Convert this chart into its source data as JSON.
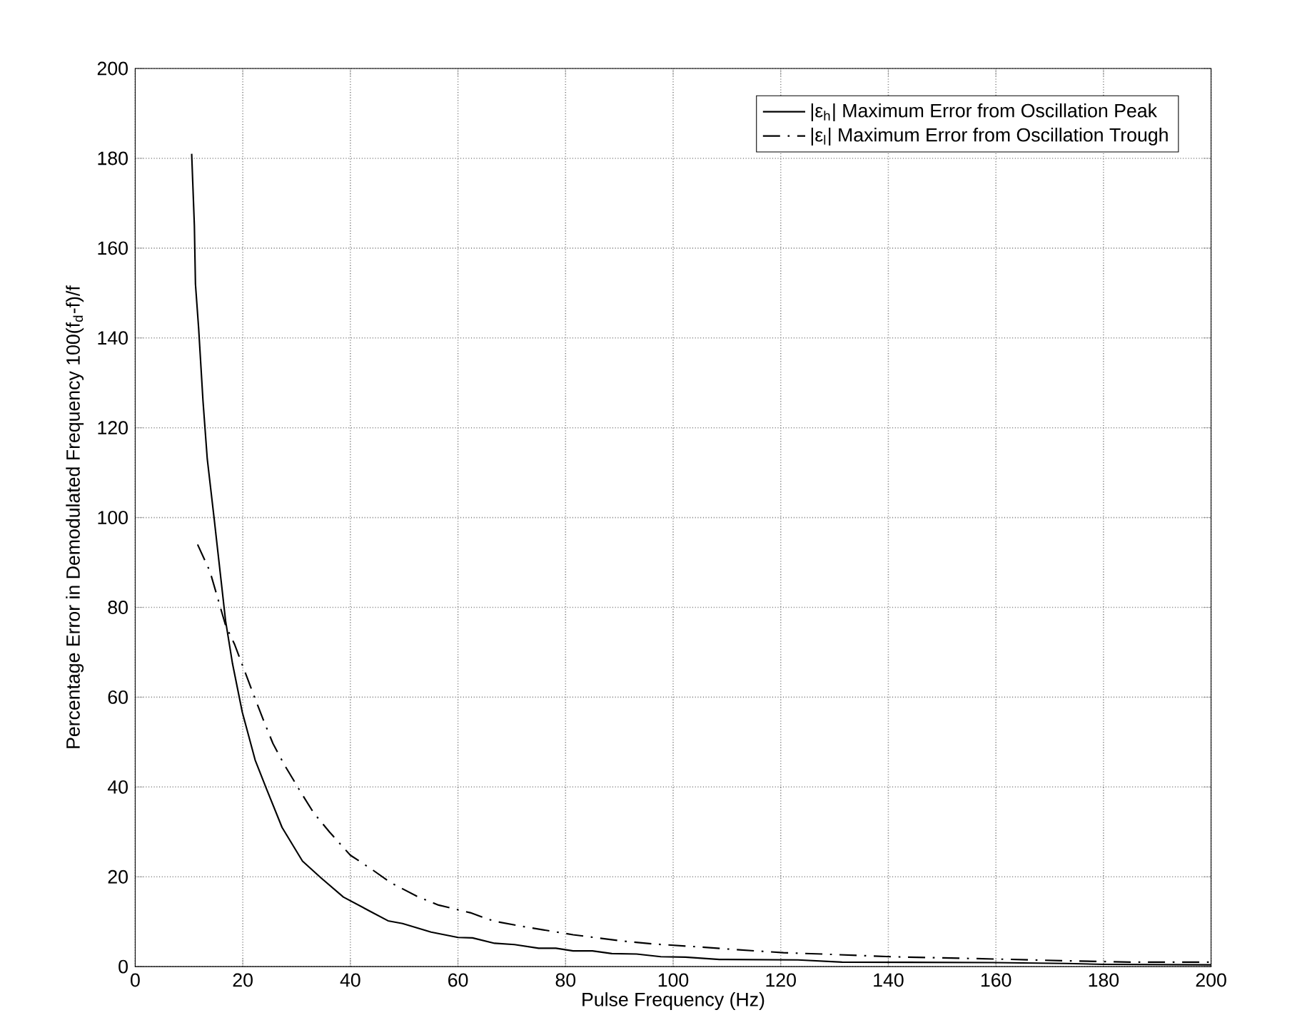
{
  "chart_data": {
    "type": "line",
    "xlabel": "Pulse Frequency (Hz)",
    "ylabel": "Percentage Error in Demodulated Frequency 100(f$_{d}$-f)/f",
    "xlim": [
      0,
      200
    ],
    "ylim": [
      0,
      200
    ],
    "xticks": [
      0,
      20,
      40,
      60,
      80,
      100,
      120,
      140,
      160,
      180,
      200
    ],
    "yticks": [
      0,
      20,
      40,
      60,
      80,
      100,
      120,
      140,
      160,
      180,
      200
    ],
    "grid": true,
    "legend": "top right",
    "marker": "none",
    "series": [
      {
        "name": "|ε$_{h}$| Maximum Error from Oscillation Peak",
        "color": "#000000",
        "line_style": "solid",
        "x": [
          10.5,
          11,
          11.2,
          11.8,
          12.6,
          13.4,
          14.7,
          16,
          16.8,
          18.1,
          19.9,
          22.3,
          24.4,
          27.3,
          31.1,
          34.5,
          38.7,
          43.7,
          47,
          49.7,
          55,
          60,
          62.7,
          66.8,
          70.5,
          75,
          78.2,
          81.4,
          85,
          88.6,
          93.2,
          97.7,
          102.3,
          108.6,
          123.2,
          131.4,
          159.5,
          173,
          180,
          200
        ],
        "values": [
          181,
          165,
          152,
          142,
          126,
          113,
          99.5,
          85.6,
          77,
          67.4,
          56.7,
          46,
          39.6,
          31,
          23.5,
          19.8,
          15.5,
          12.3,
          10.2,
          9.6,
          7.7,
          6.5,
          6.4,
          5.2,
          4.9,
          4.1,
          4.1,
          3.5,
          3.5,
          2.9,
          2.8,
          2.2,
          2.1,
          1.6,
          1.5,
          1.0,
          0.9,
          0.7,
          0.5,
          0.4
        ]
      },
      {
        "name": "|ε$_{l}$| Maximum Error from Oscillation Trough",
        "color": "#000000",
        "line_style": "dashed",
        "x": [
          11.6,
          13.9,
          16.8,
          18.5,
          21.7,
          23.8,
          25.6,
          27.7,
          30.7,
          33.2,
          36.1,
          40,
          43.7,
          47.5,
          52.3,
          56.4,
          62.3,
          65,
          66.8,
          73.2,
          81.4,
          90.5,
          96.8,
          105.9,
          111.4,
          120.5,
          127.7,
          140.5,
          159.5,
          173,
          185,
          200
        ],
        "values": [
          94,
          88,
          76,
          71.7,
          61.5,
          55,
          49.7,
          45,
          39,
          34.2,
          30,
          24.8,
          21.9,
          18.7,
          15.7,
          13.7,
          12,
          10.8,
          10.1,
          8.7,
          7.1,
          5.7,
          5.0,
          4.3,
          3.8,
          3.1,
          2.8,
          2.2,
          1.7,
          1.3,
          1.0,
          1.0
        ]
      }
    ]
  }
}
